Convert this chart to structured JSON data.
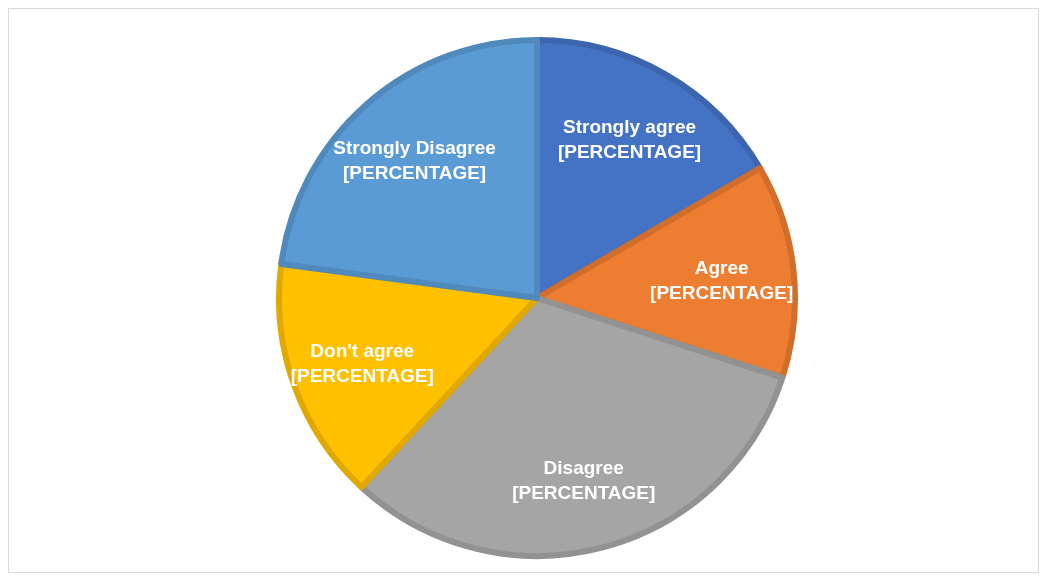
{
  "chart_data": {
    "type": "pie",
    "categories": [
      "Strongly agree",
      "Agree",
      "Disagree",
      "Don't agree",
      "Strongly Disagree"
    ],
    "values": [
      16.6,
      13.4,
      31.9,
      15.2,
      22.9
    ],
    "colors": [
      "#4472c4",
      "#ed7d31",
      "#a5a5a5",
      "#ffc000",
      "#5b9bd5"
    ],
    "value_labels": [
      "[PERCENTAGE]",
      "[PERCENTAGE]",
      "[PERCENTAGE]",
      "[PERCENTAGE]",
      "[PERCENTAGE]"
    ]
  }
}
